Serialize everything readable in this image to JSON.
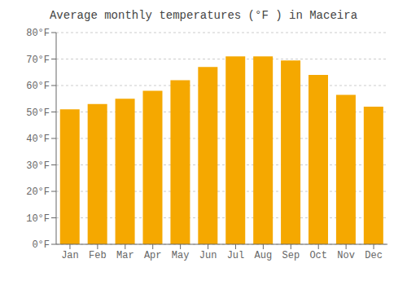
{
  "chart_data": {
    "type": "bar",
    "title": "Average monthly temperatures (°F ) in Maceira",
    "categories": [
      "Jan",
      "Feb",
      "Mar",
      "Apr",
      "May",
      "Jun",
      "Jul",
      "Aug",
      "Sep",
      "Oct",
      "Nov",
      "Dec"
    ],
    "values": [
      51,
      53,
      55,
      58,
      62,
      67,
      71,
      71,
      69.5,
      64,
      56.5,
      52
    ],
    "color": "#F5A800",
    "ylim": [
      0,
      80
    ],
    "yticks": [
      {
        "value": 0,
        "label": "0°F"
      },
      {
        "value": 10,
        "label": "10°F"
      },
      {
        "value": 20,
        "label": "20°F"
      },
      {
        "value": 30,
        "label": "30°F"
      },
      {
        "value": 40,
        "label": "40°F"
      },
      {
        "value": 50,
        "label": "50°F"
      },
      {
        "value": 60,
        "label": "60°F"
      },
      {
        "value": 70,
        "label": "70°F"
      },
      {
        "value": 80,
        "label": "80°F"
      }
    ],
    "grid": true
  }
}
